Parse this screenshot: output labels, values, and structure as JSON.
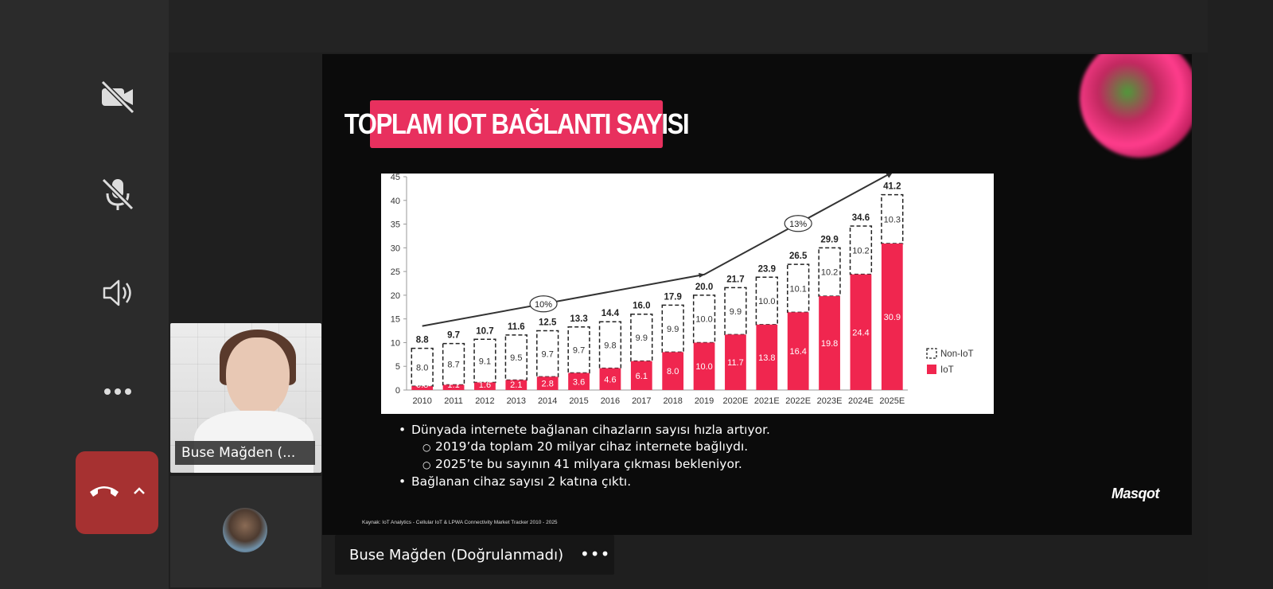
{
  "controls": {
    "camera_icon": "camera-off-icon",
    "mic_icon": "mic-off-icon",
    "speaker_icon": "speaker-icon",
    "more_icon": "more-icon",
    "end_call_icon": "end-call-icon"
  },
  "slide": {
    "title": "TOPLAM IOT BAĞLANTI SAYISI",
    "bullets": [
      {
        "level": 1,
        "text": "Dünyada internete bağlanan cihazların sayısı hızla artıyor."
      },
      {
        "level": 2,
        "text": "2019’da toplam 20 milyar cihaz internete bağlıydı."
      },
      {
        "level": 2,
        "text": "2025’te bu sayının 41 milyara çıkması bekleniyor."
      },
      {
        "level": 1,
        "text": "Bağlanan cihaz sayısı 2 katına çıktı."
      }
    ],
    "source": "Kaynak: IoT Analytics - Cellular IoT & LPWA Connectivity Market Tracker 2010 - 2025",
    "brand": "Masqot"
  },
  "chart_data": {
    "type": "bar",
    "stacked": true,
    "categories": [
      "2010",
      "2011",
      "2012",
      "2013",
      "2014",
      "2015",
      "2016",
      "2017",
      "2018",
      "2019",
      "2020E",
      "2021E",
      "2022E",
      "2023E",
      "2024E",
      "2025E"
    ],
    "series": [
      {
        "name": "IoT",
        "values": [
          0.8,
          1.1,
          1.6,
          2.1,
          2.8,
          3.6,
          4.6,
          6.1,
          8.0,
          10.0,
          11.7,
          13.8,
          16.4,
          19.8,
          24.4,
          30.9
        ],
        "color": "#f0264f"
      },
      {
        "name": "Non-IoT",
        "values": [
          8.0,
          8.7,
          9.1,
          9.5,
          9.7,
          9.7,
          9.8,
          9.9,
          9.9,
          10.0,
          9.9,
          10.0,
          10.1,
          10.2,
          10.2,
          10.3
        ],
        "style": "dashed-outline"
      }
    ],
    "totals": [
      8.8,
      9.7,
      10.7,
      11.6,
      12.5,
      13.3,
      14.4,
      16.0,
      17.9,
      20.0,
      21.7,
      23.9,
      26.5,
      29.9,
      34.6,
      41.2
    ],
    "yticks": [
      0,
      5,
      10,
      15,
      20,
      25,
      30,
      35,
      40,
      45
    ],
    "ylim": [
      0,
      45
    ],
    "annotations": [
      "10%",
      "13%"
    ],
    "legend_position": "bottom-right"
  },
  "participants": {
    "tile_name": "Buse Mağden (...",
    "presenter_label": "Buse Mağden (Doğrulanmadı)",
    "presenter_more": "•••"
  }
}
